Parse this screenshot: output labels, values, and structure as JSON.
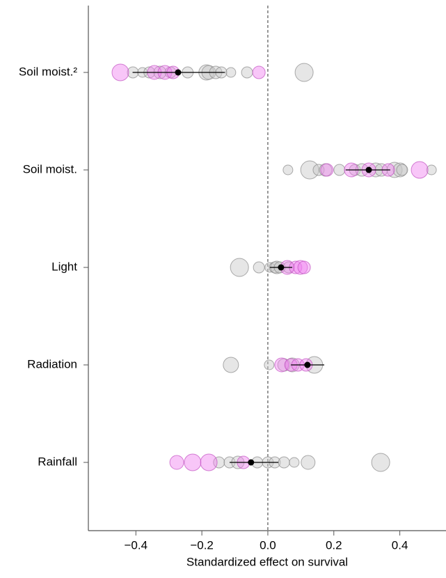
{
  "chart_data": {
    "type": "scatter",
    "xlabel": "Standardized effect on survival",
    "categories": [
      "Soil moist.²",
      "Soil moist.",
      "Light",
      "Radiation",
      "Rainfall"
    ],
    "xlim": [
      -0.544,
      0.54
    ],
    "xticks": [
      {
        "value": -0.4,
        "label": "−0.4"
      },
      {
        "value": -0.2,
        "label": "−0.2"
      },
      {
        "value": 0,
        "label": "0.0"
      },
      0.2,
      0.4
    ],
    "reference_line": 0,
    "series": [
      {
        "color": "#c8c8c8",
        "x": [
          -0.409,
          -0.38,
          -0.359,
          -0.327,
          -0.295,
          -0.243,
          -0.186,
          -0.179,
          -0.158,
          -0.141,
          -0.112,
          -0.063,
          0.11,
          0.061,
          0.127,
          0.154,
          0.175,
          0.217,
          0.264,
          0.285,
          0.327,
          0.344,
          0.384,
          0.401,
          0.407,
          0.496,
          -0.086,
          -0.027,
          0.006,
          0.021,
          0.027,
          0.036,
          0.063,
          -0.112,
          0.004,
          0.049,
          0.074,
          0.141,
          -0.148,
          -0.116,
          -0.091,
          -0.032,
          0.0,
          0.021,
          0.049,
          0.08,
          0.122,
          0.342
        ],
        "y": [
          "Soil moist.²",
          "Soil moist.²",
          "Soil moist.²",
          "Soil moist.²",
          "Soil moist.²",
          "Soil moist.²",
          "Soil moist.²",
          "Soil moist.²",
          "Soil moist.²",
          "Soil moist.²",
          "Soil moist.²",
          "Soil moist.²",
          "Soil moist.²",
          "Soil moist.",
          "Soil moist.",
          "Soil moist.",
          "Soil moist.",
          "Soil moist.",
          "Soil moist.",
          "Soil moist.",
          "Soil moist.",
          "Soil moist.",
          "Soil moist.",
          "Soil moist.",
          "Soil moist.",
          "Soil moist.",
          "Light",
          "Light",
          "Light",
          "Light",
          "Light",
          "Light",
          "Light",
          "Radiation",
          "Radiation",
          "Radiation",
          "Radiation",
          "Radiation",
          "Rainfall",
          "Rainfall",
          "Rainfall",
          "Rainfall",
          "Rainfall",
          "Rainfall",
          "Rainfall",
          "Rainfall",
          "Rainfall",
          "Rainfall"
        ],
        "sizes": [
          8,
          7,
          8,
          9,
          8,
          8,
          11,
          10,
          9,
          8,
          7,
          8,
          13,
          7,
          13,
          8,
          9,
          8,
          8,
          9,
          10,
          9,
          11,
          10,
          8,
          7,
          13,
          8,
          7,
          8,
          9,
          8,
          8,
          11,
          7,
          9,
          10,
          12,
          8,
          8,
          9,
          8,
          8,
          8,
          8,
          7,
          10,
          13
        ]
      },
      {
        "color": "#f080f0",
        "x": [
          -0.447,
          -0.344,
          -0.312,
          -0.287,
          -0.027,
          0.179,
          0.253,
          0.306,
          0.365,
          0.46,
          0.059,
          0.084,
          0.099,
          0.11,
          0.042,
          0.07,
          0.091,
          0.116,
          -0.276,
          -0.228,
          -0.179,
          -0.074
        ],
        "y": [
          "Soil moist.²",
          "Soil moist.²",
          "Soil moist.²",
          "Soil moist.²",
          "Soil moist.²",
          "Soil moist.",
          "Soil moist.",
          "Soil moist.",
          "Soil moist.",
          "Soil moist.",
          "Light",
          "Light",
          "Light",
          "Light",
          "Radiation",
          "Radiation",
          "Radiation",
          "Radiation",
          "Rainfall",
          "Rainfall",
          "Rainfall",
          "Rainfall"
        ],
        "sizes": [
          12,
          10,
          10,
          9,
          9,
          9,
          10,
          10,
          9,
          12,
          10,
          9,
          10,
          9,
          10,
          9,
          9,
          9,
          10,
          12,
          12,
          9
        ]
      }
    ],
    "means": {
      "color": "#000000",
      "x": [
        -0.272,
        0.306,
        0.04,
        0.12,
        -0.051
      ],
      "lower": [
        -0.41,
        0.236,
        0.006,
        0.07,
        -0.116
      ],
      "upper": [
        -0.13,
        0.371,
        0.074,
        0.171,
        0.032
      ]
    }
  }
}
